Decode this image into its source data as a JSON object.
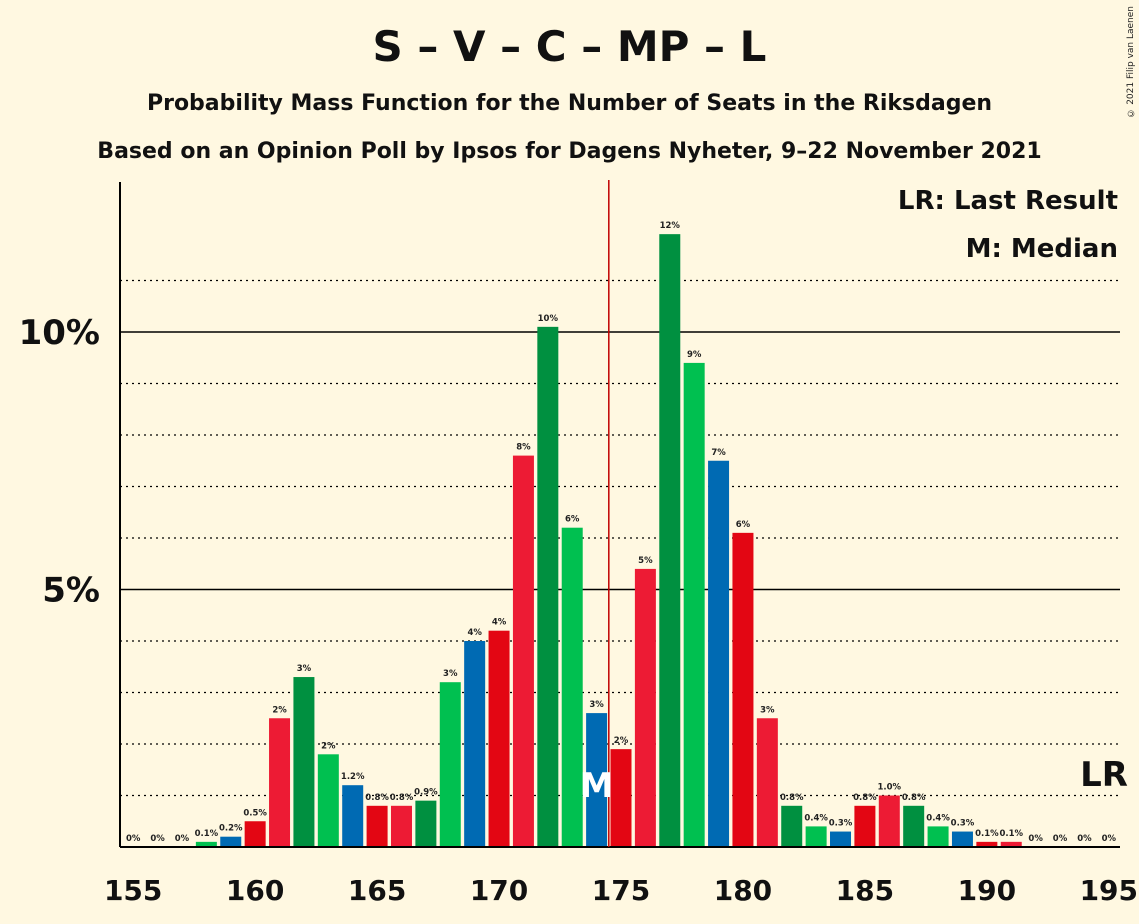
{
  "title": "S – V – C – MP – L",
  "subtitle": "Probability Mass Function for the Number of Seats in the Riksdagen",
  "subtitle2": "Based on an Opinion Poll by Ipsos for Dagens Nyheter, 9–22 November 2021",
  "copyright": "© 2021 Filip van Laenen",
  "legend": {
    "last_result": "LR: Last Result",
    "median": "M: Median"
  },
  "markers": {
    "median_label": "M",
    "median_seat": 175,
    "last_result_label": "LR",
    "last_result_seat": 195
  },
  "colors": {
    "background": "#FFF8E1",
    "median_line": "#C00000",
    "palette": [
      "#E30613",
      "#ED1B34",
      "#009040",
      "#00C050",
      "#006AB3"
    ]
  },
  "chart_data": {
    "type": "bar",
    "x": [
      155,
      156,
      157,
      158,
      159,
      160,
      161,
      162,
      163,
      164,
      165,
      166,
      167,
      168,
      169,
      170,
      171,
      172,
      173,
      174,
      175,
      176,
      177,
      178,
      179,
      180,
      181,
      182,
      183,
      184,
      185,
      186,
      187,
      188,
      189,
      190,
      191,
      192,
      193,
      194,
      195
    ],
    "values": [
      0,
      0,
      0,
      0.1,
      0.2,
      0.5,
      2.5,
      3.3,
      1.8,
      1.2,
      0.8,
      0.8,
      0.9,
      3.2,
      4.0,
      4.2,
      7.6,
      10.1,
      6.2,
      2.6,
      1.9,
      5.4,
      11.9,
      9.4,
      7.5,
      6.1,
      2.5,
      0.8,
      0.4,
      0.3,
      0.8,
      1.0,
      0.8,
      0.4,
      0.3,
      0.1,
      0.1,
      0,
      0,
      0,
      0
    ],
    "labels": [
      "0%",
      "0%",
      "0%",
      "0.1%",
      "0.2%",
      "0.5%",
      "2%",
      "3%",
      "2%",
      "1.2%",
      "0.8%",
      "0.8%",
      "0.9%",
      "3%",
      "4%",
      "4%",
      "8%",
      "10%",
      "6%",
      "3%",
      "2%",
      "5%",
      "12%",
      "9%",
      "7%",
      "6%",
      "3%",
      "0.8%",
      "0.4%",
      "0.3%",
      "0.8%",
      "1.0%",
      "0.8%",
      "0.4%",
      "0.3%",
      "0.1%",
      "0.1%",
      "0%",
      "0%",
      "0%",
      "0%"
    ],
    "color_names": [
      "red",
      "red2",
      "green",
      "green2",
      "blue"
    ],
    "x_ticks": [
      155,
      160,
      165,
      170,
      175,
      180,
      185,
      190,
      195
    ],
    "y_ticks": [
      {
        "value": 5,
        "label": "5%"
      },
      {
        "value": 10,
        "label": "10%"
      }
    ],
    "xlim": [
      155,
      195
    ],
    "ylim": [
      0,
      12.9
    ],
    "grid": true,
    "legend_position": "top-right"
  }
}
